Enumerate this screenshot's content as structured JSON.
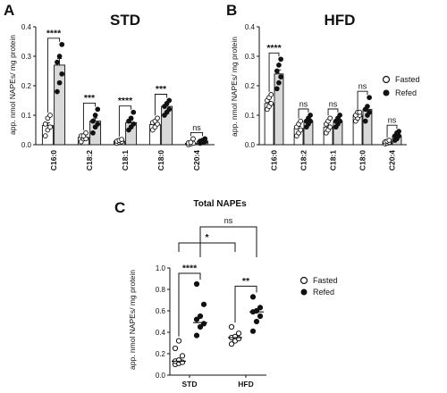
{
  "panels": {
    "A": {
      "letter": "A",
      "title": "STD"
    },
    "B": {
      "letter": "B",
      "title": "HFD"
    },
    "C": {
      "letter": "C",
      "title": "Total NAPEs"
    }
  },
  "legend": {
    "fasted": "Fasted",
    "refed": "Refed"
  },
  "colors": {
    "refed_bar": "#d9d9d9",
    "fasted_bar": "#ffffff",
    "marker": "#111111",
    "axis": "#111111"
  },
  "chart_data": [
    {
      "panel": "A",
      "type": "bar",
      "title": "STD",
      "ylabel": "app. nmol NAPEs/ mg protein",
      "ylim": [
        0,
        0.4
      ],
      "yticks": [
        "0.0",
        "0.1",
        "0.2",
        "0.3",
        "0.4"
      ],
      "ytick_values": [
        0,
        0.1,
        0.2,
        0.3,
        0.4
      ],
      "categories": [
        "C16:0",
        "C18:2",
        "C18:1",
        "C18:0",
        "C20:4"
      ],
      "series": [
        {
          "name": "Fasted",
          "values": [
            0.065,
            0.025,
            0.012,
            0.068,
            0.005
          ],
          "points": [
            [
              0.03,
              0.05,
              0.06,
              0.07,
              0.09,
              0.1
            ],
            [
              0.01,
              0.02,
              0.02,
              0.03,
              0.03,
              0.04
            ],
            [
              0.005,
              0.008,
              0.01,
              0.012,
              0.015,
              0.018
            ],
            [
              0.05,
              0.06,
              0.07,
              0.075,
              0.08,
              0.09
            ],
            [
              0.0,
              0.003,
              0.005,
              0.006,
              0.008,
              0.02
            ]
          ]
        },
        {
          "name": "Refed",
          "values": [
            0.27,
            0.08,
            0.075,
            0.13,
            0.012
          ],
          "points": [
            [
              0.18,
              0.21,
              0.24,
              0.28,
              0.3,
              0.34
            ],
            [
              0.04,
              0.06,
              0.07,
              0.08,
              0.1,
              0.12
            ],
            [
              0.05,
              0.06,
              0.07,
              0.08,
              0.09,
              0.11
            ],
            [
              0.1,
              0.11,
              0.12,
              0.13,
              0.14,
              0.15
            ],
            [
              0.005,
              0.008,
              0.01,
              0.012,
              0.015,
              0.02
            ]
          ]
        }
      ],
      "significance": [
        "****",
        "***",
        "****",
        "***",
        "ns"
      ]
    },
    {
      "panel": "B",
      "type": "bar",
      "title": "HFD",
      "ylabel": "app. nmol NAPEs/ mg protein",
      "ylim": [
        0,
        0.4
      ],
      "yticks": [
        "0.0",
        "0.1",
        "0.2",
        "0.3",
        "0.4"
      ],
      "ytick_values": [
        0,
        0.1,
        0.2,
        0.3,
        0.4
      ],
      "categories": [
        "C16:0",
        "C18:2",
        "C18:1",
        "C18:0",
        "C20:4"
      ],
      "series": [
        {
          "name": "Fasted",
          "values": [
            0.14,
            0.055,
            0.06,
            0.1,
            0.01
          ],
          "points": [
            [
              0.12,
              0.13,
              0.14,
              0.15,
              0.16,
              0.17
            ],
            [
              0.03,
              0.04,
              0.05,
              0.06,
              0.07,
              0.08
            ],
            [
              0.04,
              0.05,
              0.06,
              0.07,
              0.08,
              0.09
            ],
            [
              0.08,
              0.09,
              0.1,
              0.1,
              0.11,
              0.11
            ],
            [
              0.003,
              0.005,
              0.008,
              0.01,
              0.012,
              0.015
            ]
          ]
        },
        {
          "name": "Refed",
          "values": [
            0.24,
            0.08,
            0.08,
            0.12,
            0.03
          ],
          "points": [
            [
              0.19,
              0.21,
              0.23,
              0.25,
              0.27,
              0.29
            ],
            [
              0.06,
              0.07,
              0.08,
              0.08,
              0.09,
              0.1
            ],
            [
              0.06,
              0.07,
              0.08,
              0.08,
              0.09,
              0.1
            ],
            [
              0.08,
              0.1,
              0.11,
              0.12,
              0.13,
              0.16
            ],
            [
              0.015,
              0.02,
              0.03,
              0.03,
              0.04,
              0.045
            ]
          ]
        }
      ],
      "significance": [
        "****",
        "ns",
        "ns",
        "ns",
        "ns"
      ]
    },
    {
      "panel": "C",
      "type": "scatter",
      "title": "Total NAPEs",
      "ylabel": "app. nmol NAPEs/ mg protein",
      "ylim": [
        0,
        1.0
      ],
      "yticks": [
        "0.0",
        "0.2",
        "0.4",
        "0.6",
        "0.8",
        "1.0"
      ],
      "ytick_values": [
        0,
        0.2,
        0.4,
        0.6,
        0.8,
        1.0
      ],
      "categories": [
        "STD",
        "HFD"
      ],
      "series": [
        {
          "name": "Fasted",
          "medians": [
            0.13,
            0.35
          ],
          "points": [
            [
              0.1,
              0.11,
              0.12,
              0.13,
              0.14,
              0.18,
              0.25,
              0.32
            ],
            [
              0.29,
              0.32,
              0.34,
              0.35,
              0.36,
              0.39,
              0.45
            ]
          ]
        },
        {
          "name": "Refed",
          "medians": [
            0.49,
            0.59
          ],
          "points": [
            [
              0.37,
              0.45,
              0.48,
              0.52,
              0.55,
              0.66,
              0.85
            ],
            [
              0.41,
              0.5,
              0.55,
              0.59,
              0.6,
              0.63,
              0.73
            ]
          ]
        }
      ],
      "significance": {
        "within": [
          "****",
          "**"
        ],
        "fasted_between": "*",
        "refed_between": "ns"
      }
    }
  ]
}
